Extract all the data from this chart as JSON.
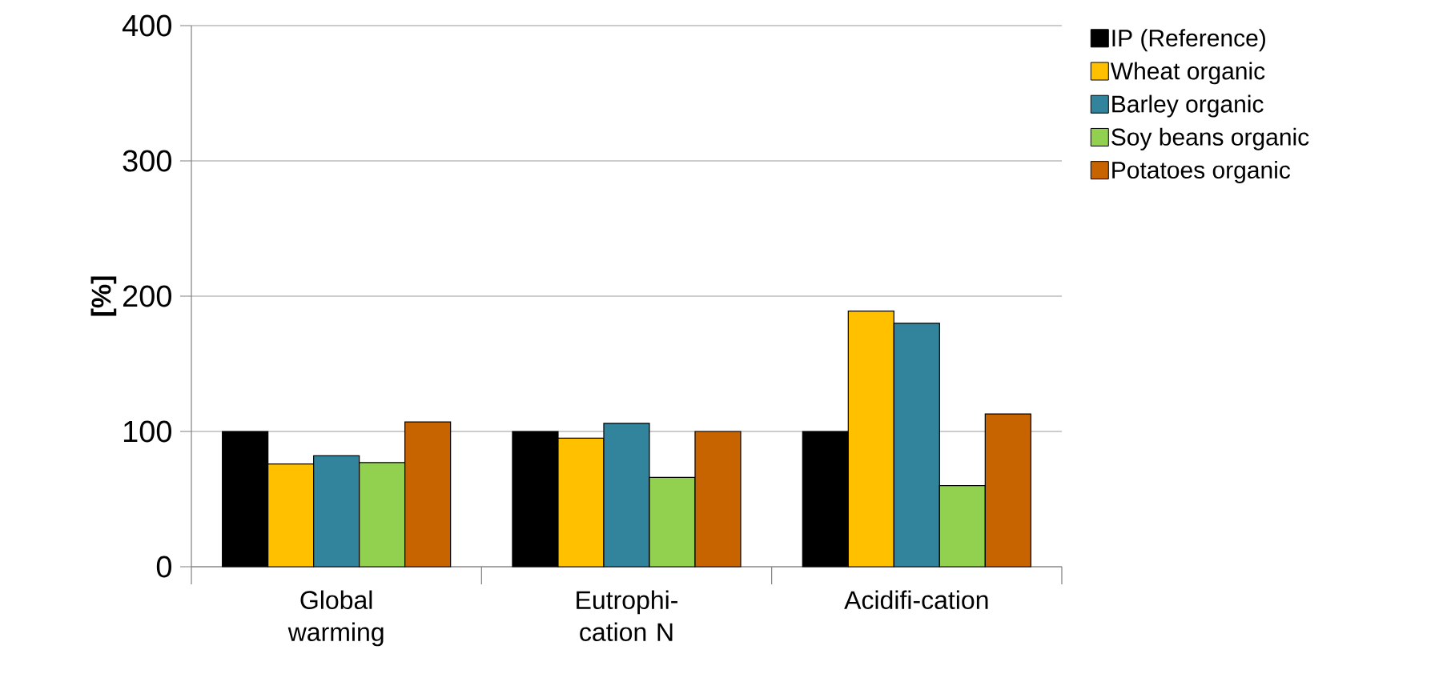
{
  "chart_data": {
    "type": "bar",
    "ylabel": "[%]",
    "categories": [
      "Global warming",
      "Eutrophi-cation N",
      "Acidifi-cation"
    ],
    "series": [
      {
        "name": "IP (Reference)",
        "color": "#000000",
        "values": [
          100,
          100,
          100
        ]
      },
      {
        "name": "Wheat organic",
        "color": "#ffc000",
        "values": [
          76,
          95,
          189
        ]
      },
      {
        "name": "Barley organic",
        "color": "#31849b",
        "values": [
          82,
          106,
          180
        ]
      },
      {
        "name": "Soy beans organic",
        "color": "#92d050",
        "values": [
          77,
          66,
          60
        ]
      },
      {
        "name": "Potatoes organic",
        "color": "#c86400",
        "values": [
          107,
          100,
          113
        ]
      }
    ],
    "ylim": [
      0,
      400
    ],
    "yticks": [
      0,
      100,
      200,
      300,
      400
    ],
    "grid": "y",
    "legend": "right"
  }
}
